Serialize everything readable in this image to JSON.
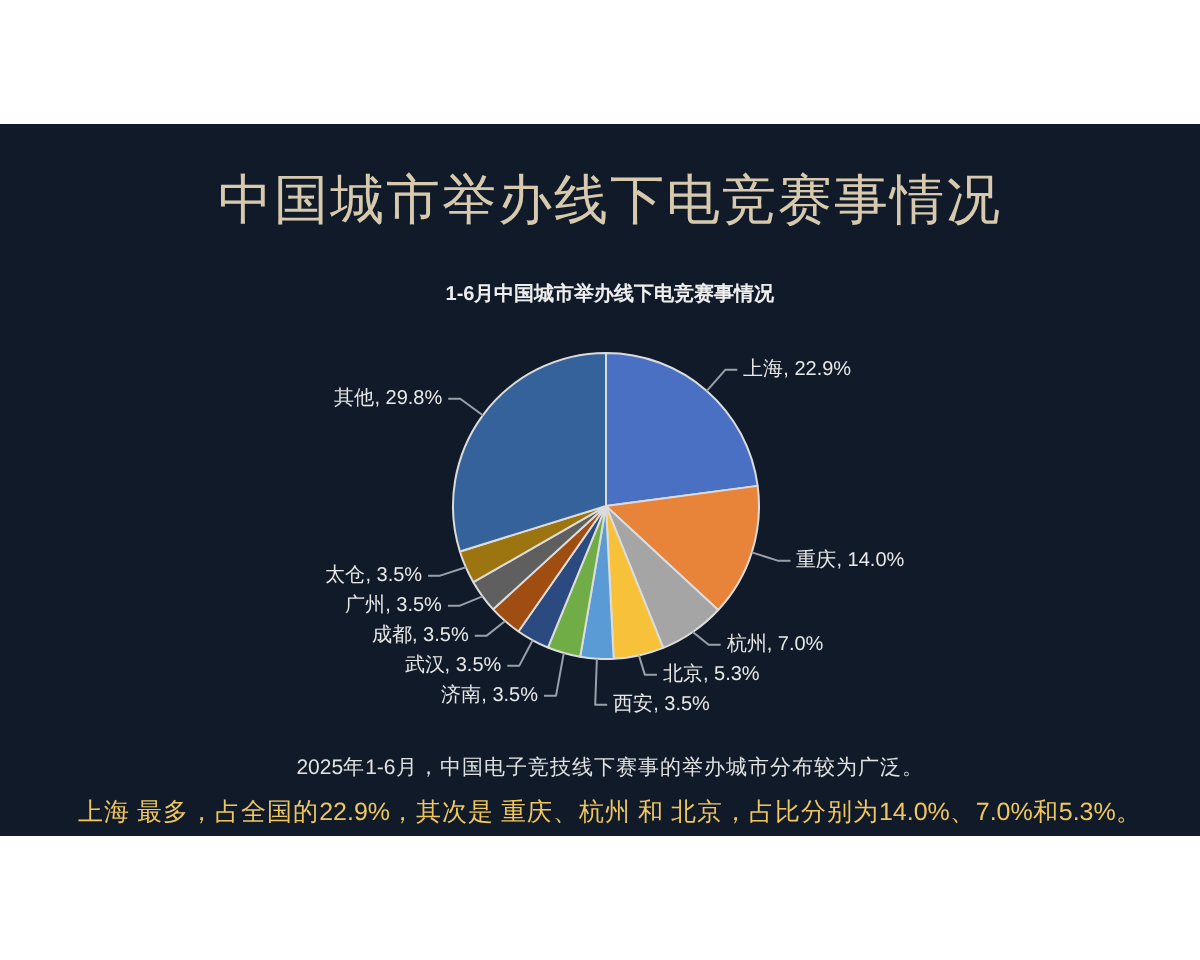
{
  "chart_data": {
    "type": "pie",
    "title": "中国城市举办线下电竞赛事情况",
    "subtitle": "1-6月中国城市举办线下电竞赛事情况",
    "categories": [
      "上海",
      "重庆",
      "杭州",
      "北京",
      "西安",
      "济南",
      "武汉",
      "成都",
      "广州",
      "太仓",
      "其他"
    ],
    "values": [
      22.9,
      14.0,
      7.0,
      5.3,
      3.5,
      3.5,
      3.5,
      3.5,
      3.5,
      3.5,
      29.8
    ],
    "colors": [
      "#4a70c4",
      "#e8833a",
      "#a5a5a5",
      "#f7c13a",
      "#5b9bd5",
      "#71ad47",
      "#2a4a80",
      "#a04d12",
      "#5f5f5f",
      "#9c7510",
      "#35629a"
    ],
    "value_labels": [
      "22.9%",
      "14.0%",
      "7.0%",
      "5.3%",
      "3.5%",
      "3.5%",
      "3.5%",
      "3.5%",
      "3.5%",
      "3.5%",
      "29.8%"
    ],
    "annotations": [
      "2025年1-6月，中国电子竞技线下赛事的举办城市分布较为广泛。",
      "上海 最多，占全国的22.9%，其次是 重庆、杭州 和 北京，占比分别为14.0%、7.0%和5.3%。"
    ]
  }
}
